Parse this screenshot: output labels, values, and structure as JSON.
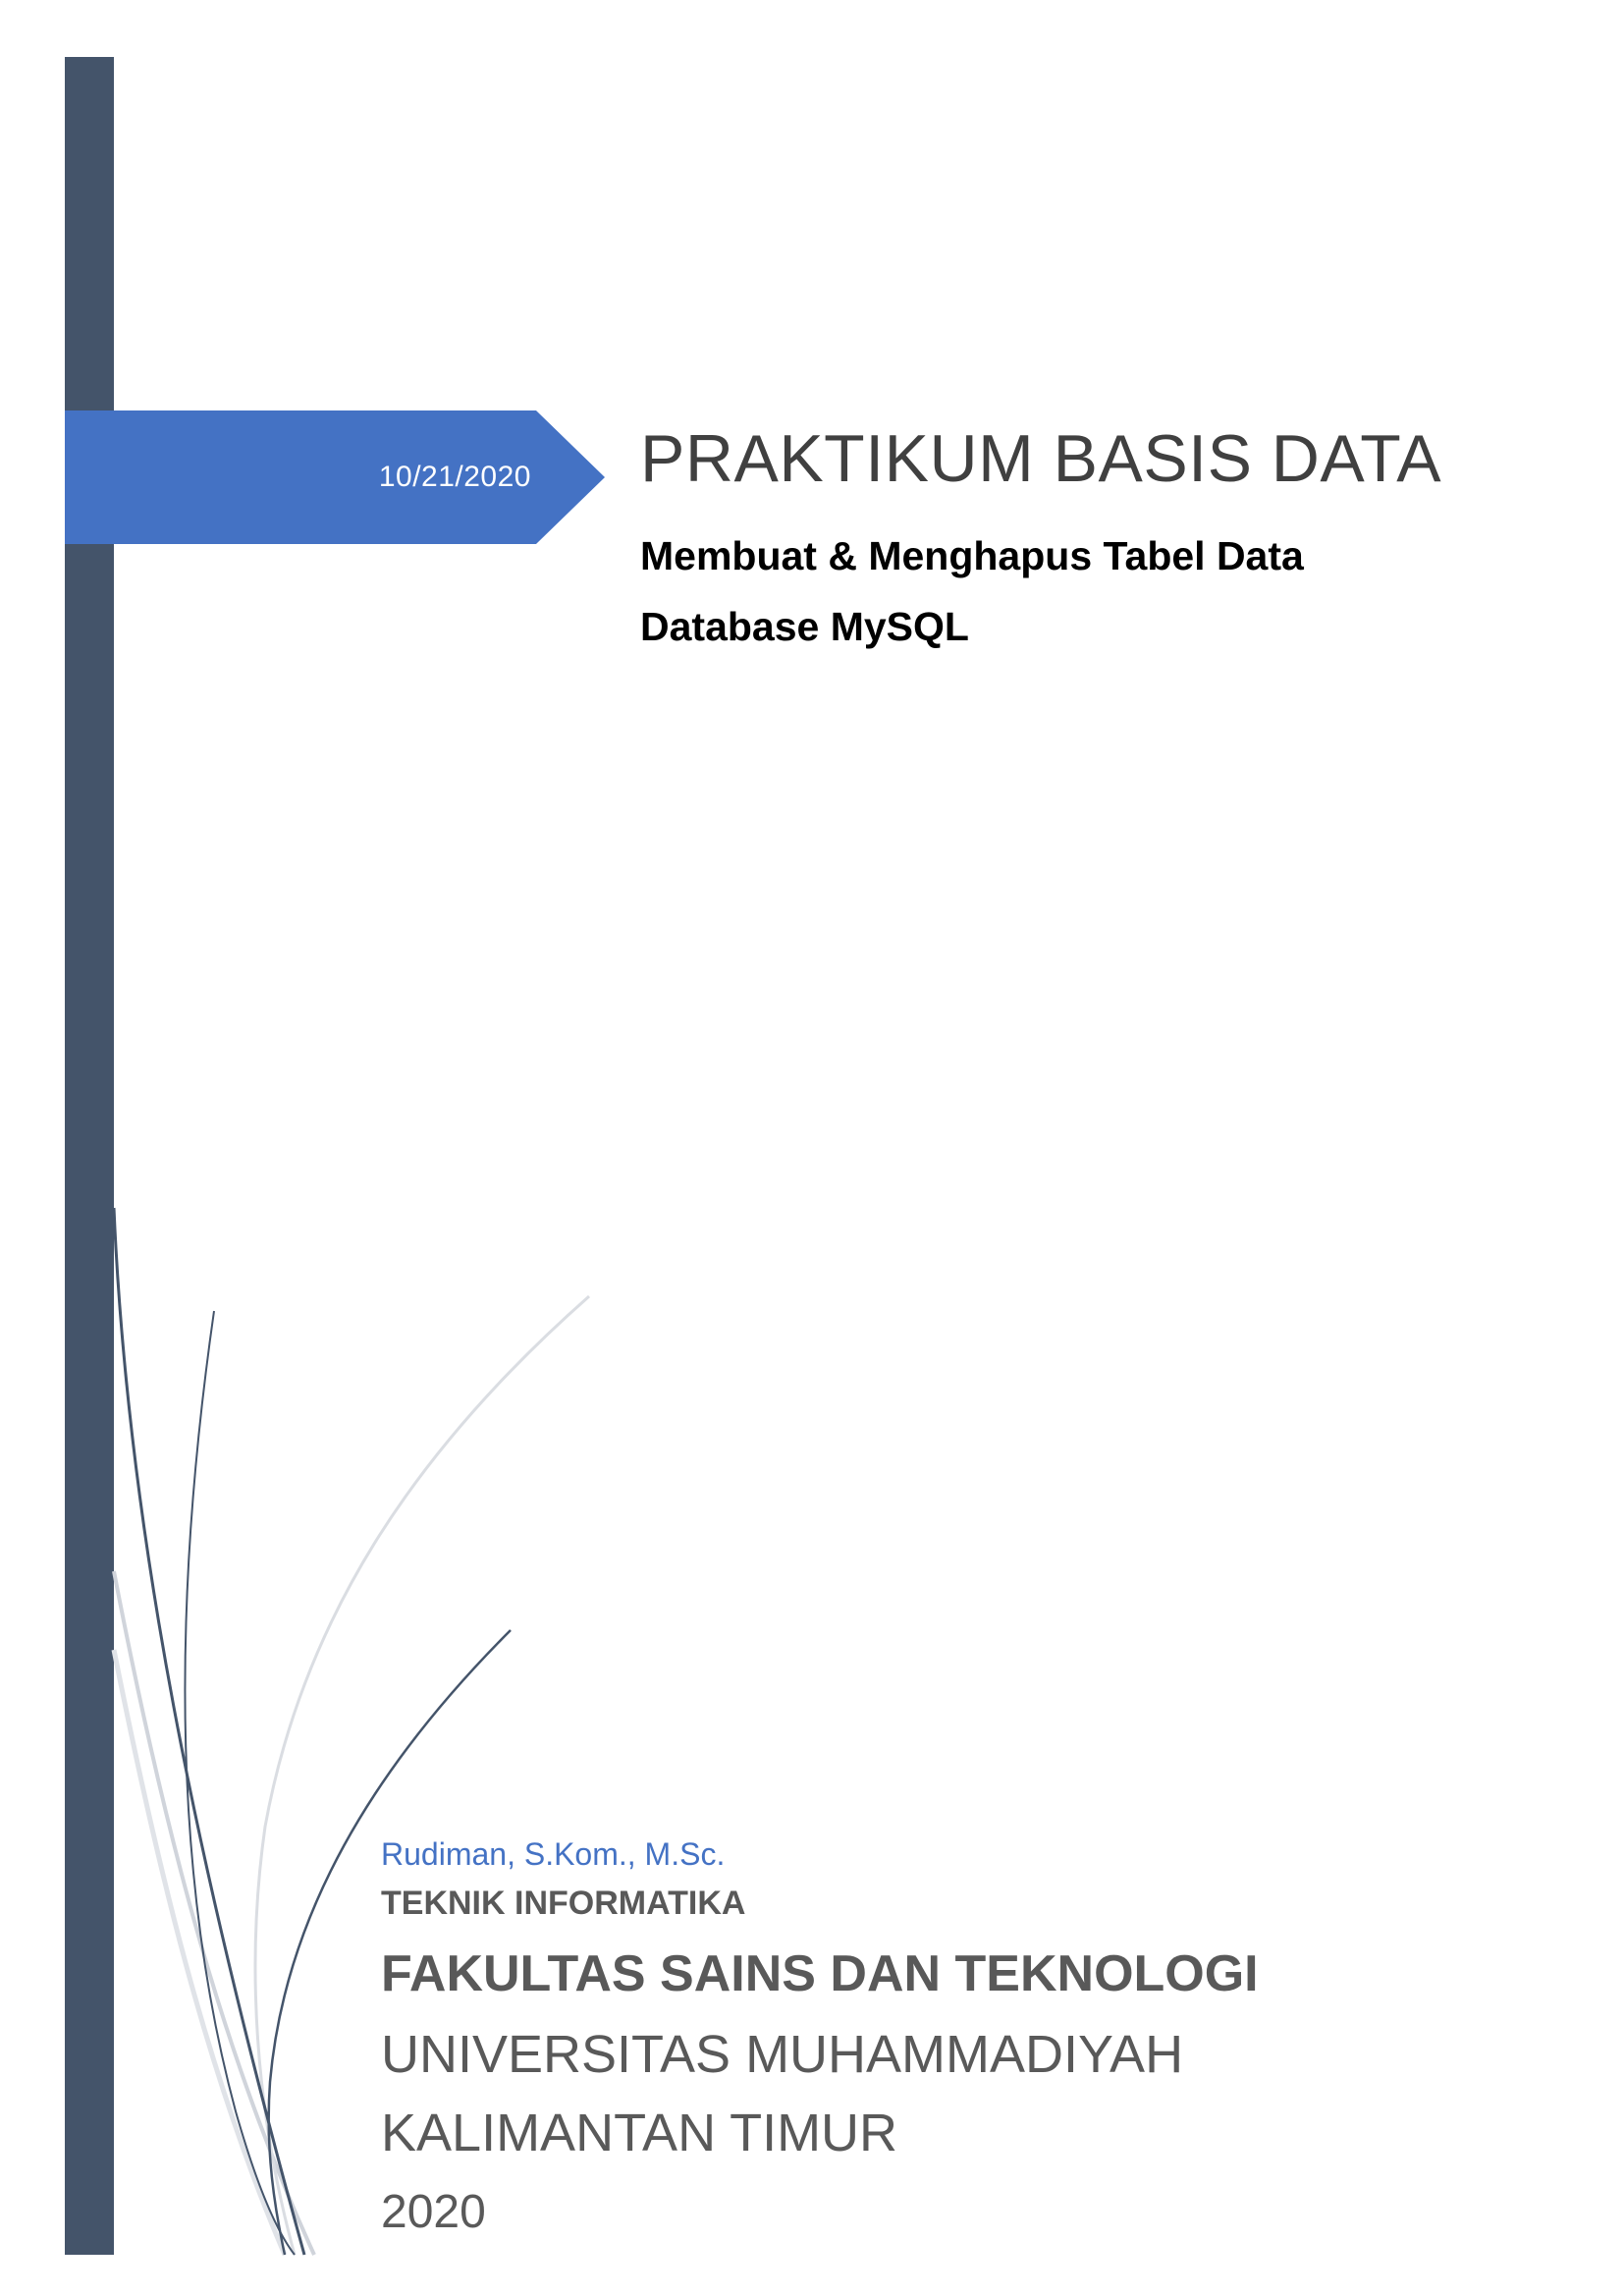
{
  "cover": {
    "date": "10/21/2020",
    "title": "PRAKTIKUM BASIS DATA",
    "subtitle_line1": "Membuat & Menghapus Tabel Data",
    "subtitle_line2": "Database MySQL"
  },
  "footer": {
    "author": "Rudiman, S.Kom., M.Sc.",
    "department": "TEKNIK INFORMATIKA",
    "faculty": "FAKULTAS SAINS DAN TEKNOLOGI",
    "university_line1": "UNIVERSITAS MUHAMMADIYAH",
    "university_line2": "KALIMANTAN TIMUR",
    "year": "2020"
  },
  "colors": {
    "sidebar": "#44546a",
    "banner": "#4472c4",
    "author": "#4472c4",
    "text_gray": "#595959",
    "title": "#404040"
  }
}
